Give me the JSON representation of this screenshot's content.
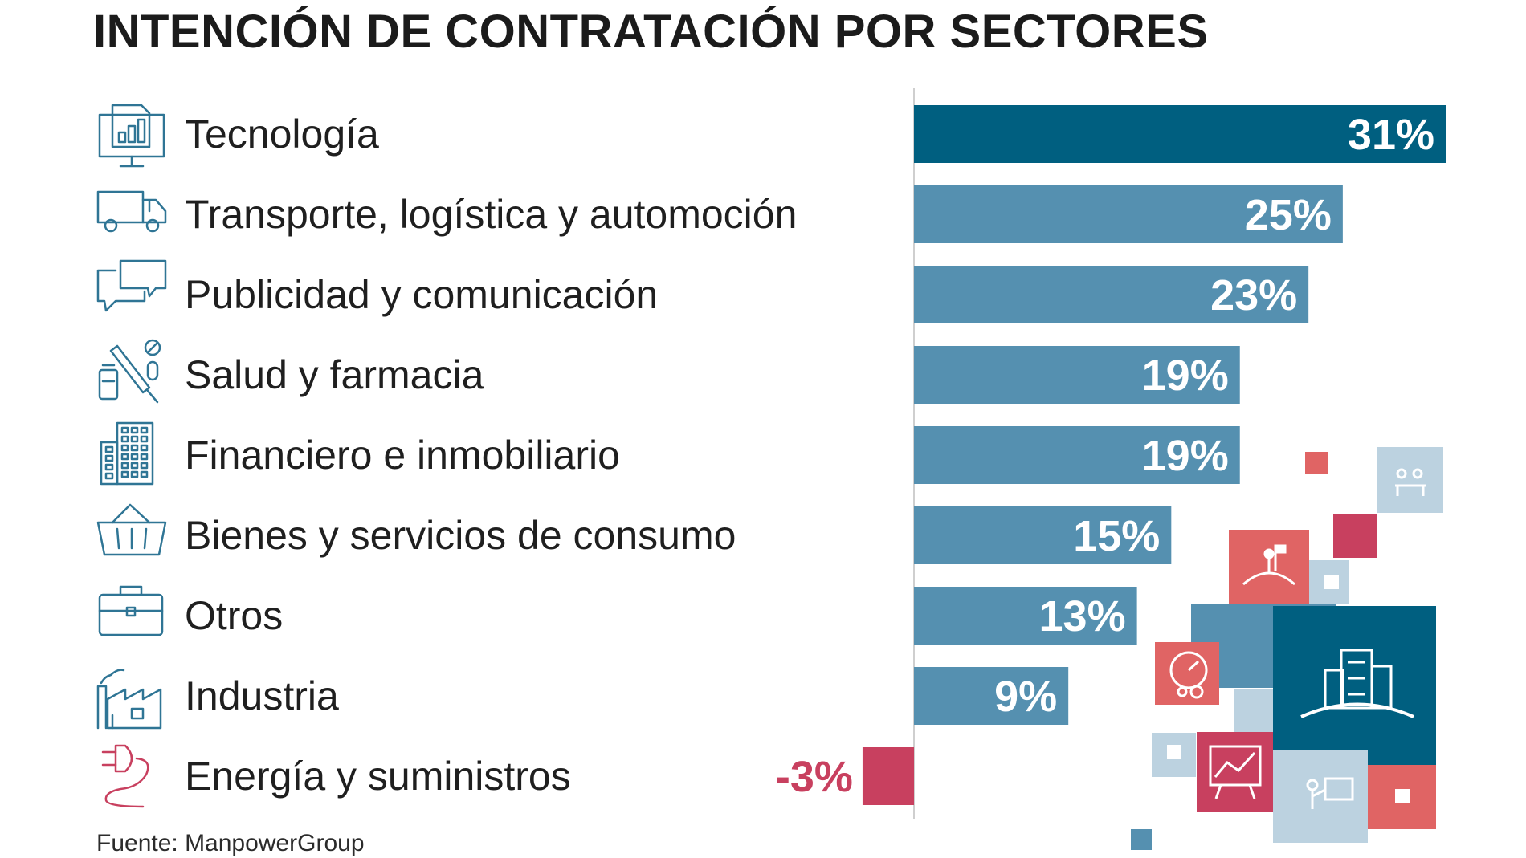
{
  "title": "INTENCIÓN DE CONTRATACIÓN POR SECTORES",
  "source": "Fuente: ManpowerGroup",
  "colors": {
    "highlight": "#005f80",
    "bar": "#5590b0",
    "negative": "#c8405f",
    "label": "#1f1f1f",
    "icon": "#2f7595",
    "icon_negative": "#c8405f",
    "axis": "#cfcfcf",
    "deco_red": "#e06464",
    "deco_crimson": "#c8405f",
    "deco_light": "#bcd2e0",
    "deco_dark": "#005f80"
  },
  "chart_data": {
    "type": "bar",
    "orientation": "horizontal",
    "title": "INTENCIÓN DE CONTRATACIÓN POR SECTORES",
    "unit": "%",
    "categories": [
      "Tecnología",
      "Transporte, logística y automoción",
      "Publicidad y comunicación",
      "Salud y farmacia",
      "Financiero e inmobiliario",
      "Bienes y servicios de consumo",
      "Otros",
      "Industria",
      "Energía y suministros"
    ],
    "values": [
      31,
      25,
      23,
      19,
      19,
      15,
      13,
      9,
      -3
    ],
    "value_labels": [
      "31%",
      "25%",
      "23%",
      "19%",
      "19%",
      "15%",
      "13%",
      "9%",
      "-3%"
    ],
    "icons": [
      "computer-chart-icon",
      "truck-icon",
      "speech-bubbles-icon",
      "syringe-vial-icon",
      "office-building-icon",
      "shopping-basket-icon",
      "briefcase-icon",
      "factory-icon",
      "power-plug-icon"
    ],
    "highlight_index": 0,
    "xlim": [
      -3,
      31
    ]
  }
}
